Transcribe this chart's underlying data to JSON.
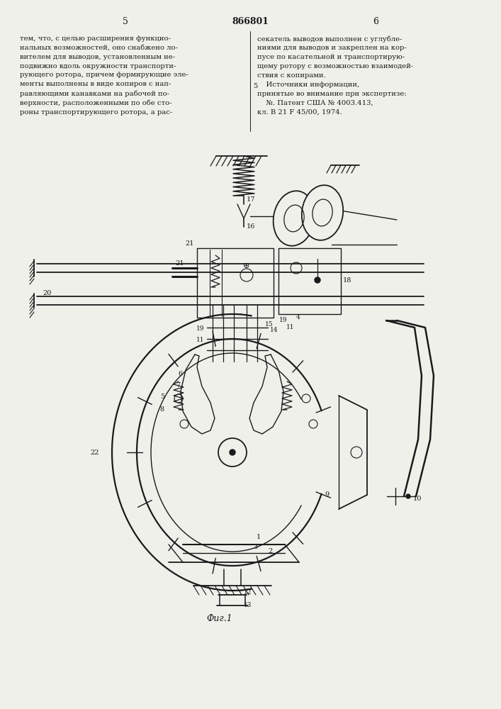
{
  "title": "866801",
  "page_left": "5",
  "page_right": "6",
  "fig_label": "Фиг.1",
  "bg_color": "#f0f0eb",
  "line_color": "#1a1a1a",
  "text_color": "#1a1a1a"
}
